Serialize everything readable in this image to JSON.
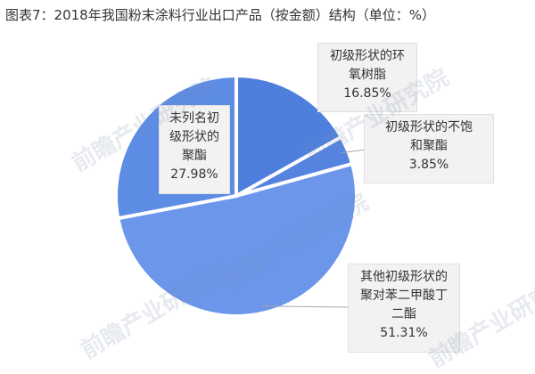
{
  "title": "图表7：2018年我国粉末涂料行业出口产品（按金额）结构（单位：%）",
  "chart_data": {
    "type": "pie",
    "slices": [
      {
        "name_lines": [
          "初级形状的环",
          "氧树脂"
        ],
        "value": 16.85,
        "label": "16.85%",
        "color": "#4f7fdd"
      },
      {
        "name_lines": [
          "初级形状的不饱",
          "和聚酯"
        ],
        "value": 3.85,
        "label": "3.85%",
        "color": "#5583e0"
      },
      {
        "name_lines": [
          "其他初级形状的",
          "聚对苯二甲酸丁",
          "二酯"
        ],
        "value": 51.31,
        "label": "51.31%",
        "color": "#6b96ea"
      },
      {
        "name_lines": [
          "未列名初",
          "级形状的",
          "聚酯"
        ],
        "value": 27.98,
        "label": "27.98%",
        "color": "#5d8ce5"
      }
    ]
  },
  "watermark": "前瞻产业研究院"
}
